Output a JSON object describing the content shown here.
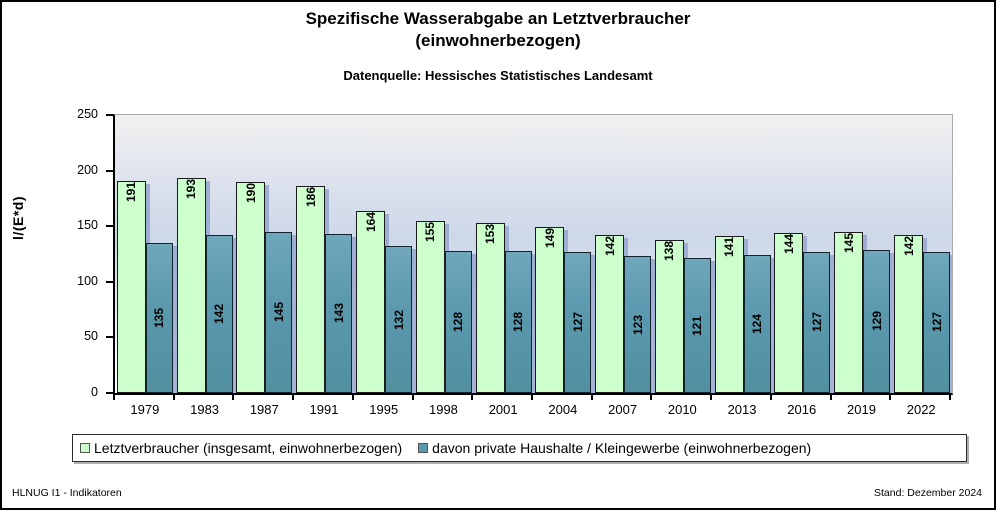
{
  "header": {
    "title_line1": "Spezifische Wasserabgabe an Letztverbraucher",
    "title_line2": "(einwohnerbezogen)",
    "subtitle": "Datenquelle: Hessisches Statistisches Landesamt"
  },
  "footer": {
    "left": "HLNUG I1 - Indikatoren",
    "right": "Stand: Dezember 2024"
  },
  "colors": {
    "series1_fill": "#CCFFCC",
    "series2_fill": "#5A98AD",
    "bar_border": "#1A1A1A",
    "bar_shadow": "#96A6D0",
    "plot_bg_top": "#F1F1EF",
    "plot_bg_middle": "#CCD7E8",
    "plot_bg_bottom": "#FFFFFF",
    "axis": "#000000"
  },
  "chart_data": {
    "type": "bar",
    "title": "Spezifische Wasserabgabe an Letztverbraucher (einwohnerbezogen)",
    "subtitle": "Datenquelle: Hessisches Statistisches Landesamt",
    "xlabel": "",
    "ylabel": "l/(E*d)",
    "ylim": [
      0,
      250
    ],
    "yticks": [
      0,
      50,
      100,
      150,
      200,
      250
    ],
    "grid": false,
    "legend_position": "bottom",
    "value_labels": "inside-vertical",
    "categories": [
      "1979",
      "1983",
      "1987",
      "1991",
      "1995",
      "1998",
      "2001",
      "2004",
      "2007",
      "2010",
      "2013",
      "2016",
      "2019",
      "2022"
    ],
    "series": [
      {
        "name": "Letztverbraucher (insgesamt, einwohnerbezogen)",
        "color": "#CCFFCC",
        "values": [
          191,
          193,
          190,
          186,
          164,
          155,
          153,
          149,
          142,
          138,
          141,
          144,
          145,
          142
        ]
      },
      {
        "name": "davon private Haushalte / Kleingewerbe (einwohnerbezogen)",
        "color": "#5A98AD",
        "values": [
          135,
          142,
          145,
          143,
          132,
          128,
          128,
          127,
          123,
          121,
          124,
          127,
          129,
          127
        ]
      }
    ]
  }
}
